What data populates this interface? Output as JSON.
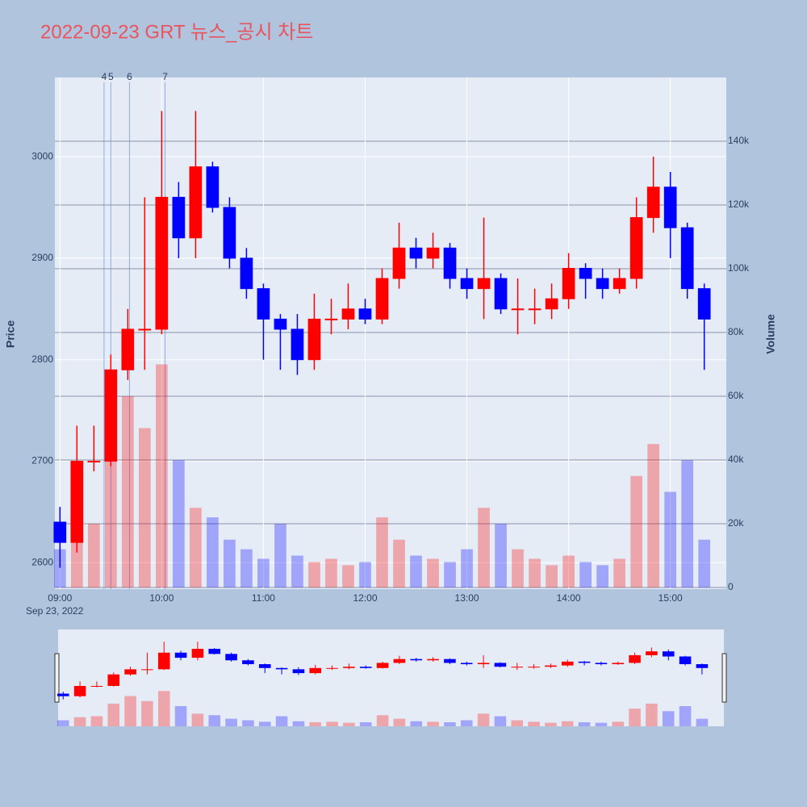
{
  "chart_data": {
    "type": "candlestick",
    "title": "2022-09-23 GRT 뉴스_공시 차트",
    "y_label": "Price",
    "y2_label": "Volume",
    "x_date": "Sep 23, 2022",
    "x": [
      "09:00",
      "09:10",
      "09:20",
      "09:30",
      "09:40",
      "09:50",
      "10:00",
      "10:10",
      "10:20",
      "10:30",
      "10:40",
      "10:50",
      "11:00",
      "11:10",
      "11:20",
      "11:30",
      "11:40",
      "11:50",
      "12:00",
      "12:10",
      "12:20",
      "12:30",
      "12:40",
      "12:50",
      "13:00",
      "13:10",
      "13:20",
      "13:30",
      "13:40",
      "13:50",
      "14:00",
      "14:10",
      "14:20",
      "14:30",
      "14:40",
      "14:50",
      "15:00",
      "15:10",
      "15:20"
    ],
    "open": [
      2640,
      2620,
      2700,
      2700,
      2790,
      2830,
      2830,
      2960,
      2920,
      2990,
      2950,
      2900,
      2870,
      2840,
      2830,
      2800,
      2840,
      2840,
      2850,
      2840,
      2880,
      2910,
      2900,
      2910,
      2880,
      2870,
      2880,
      2850,
      2850,
      2850,
      2860,
      2890,
      2880,
      2870,
      2880,
      2940,
      2970,
      2930,
      2870
    ],
    "high": [
      2655,
      2735,
      2735,
      2805,
      2850,
      2960,
      3045,
      2975,
      3045,
      2995,
      2960,
      2910,
      2875,
      2845,
      2845,
      2865,
      2860,
      2875,
      2860,
      2890,
      2935,
      2920,
      2925,
      2915,
      2890,
      2940,
      2885,
      2880,
      2870,
      2875,
      2905,
      2895,
      2890,
      2890,
      2960,
      3000,
      2985,
      2935,
      2875
    ],
    "low": [
      2595,
      2610,
      2690,
      2695,
      2780,
      2790,
      2825,
      2900,
      2900,
      2945,
      2890,
      2860,
      2800,
      2790,
      2785,
      2790,
      2825,
      2830,
      2835,
      2835,
      2870,
      2890,
      2890,
      2870,
      2860,
      2840,
      2845,
      2825,
      2835,
      2840,
      2850,
      2860,
      2860,
      2865,
      2870,
      2925,
      2900,
      2860,
      2790
    ],
    "close": [
      2620,
      2700,
      2700,
      2790,
      2830,
      2830,
      2960,
      2920,
      2990,
      2950,
      2900,
      2870,
      2840,
      2830,
      2800,
      2840,
      2840,
      2850,
      2840,
      2880,
      2910,
      2900,
      2910,
      2880,
      2870,
      2880,
      2850,
      2850,
      2850,
      2860,
      2890,
      2880,
      2870,
      2880,
      2940,
      2970,
      2930,
      2870,
      2840
    ],
    "volume": [
      12000,
      18000,
      20000,
      45000,
      60000,
      50000,
      70000,
      40000,
      25000,
      22000,
      15000,
      12000,
      9000,
      20000,
      10000,
      8000,
      9000,
      7000,
      8000,
      22000,
      15000,
      10000,
      9000,
      8000,
      12000,
      25000,
      20000,
      12000,
      9000,
      7000,
      10000,
      8000,
      7000,
      9000,
      35000,
      45000,
      30000,
      40000,
      15000
    ],
    "increasing_color": "#ff0000",
    "decreasing_color": "#0000ff",
    "events": [
      {
        "label": "4",
        "x": "09:26"
      },
      {
        "label": "5",
        "x": "09:30"
      },
      {
        "label": "6",
        "x": "09:41"
      },
      {
        "label": "7",
        "x": "10:02"
      }
    ],
    "xlim": [
      "08:57",
      "15:33"
    ],
    "xticks": [
      "09:00",
      "10:00",
      "11:00",
      "12:00",
      "13:00",
      "14:00",
      "15:00"
    ],
    "ylim": [
      2574,
      3078
    ],
    "yticks": [
      2600,
      2700,
      2800,
      2900,
      3000
    ],
    "y2lim": [
      0,
      160000
    ],
    "y2ticks": [
      0,
      {
        "value": 20000,
        "label": "20k"
      },
      {
        "value": 40000,
        "label": "40k"
      },
      {
        "value": 60000,
        "label": "60k"
      },
      {
        "value": 80000,
        "label": "80k"
      },
      {
        "value": 100000,
        "label": "100k"
      },
      {
        "value": 120000,
        "label": "120k"
      },
      {
        "value": 140000,
        "label": "140k"
      }
    ]
  }
}
